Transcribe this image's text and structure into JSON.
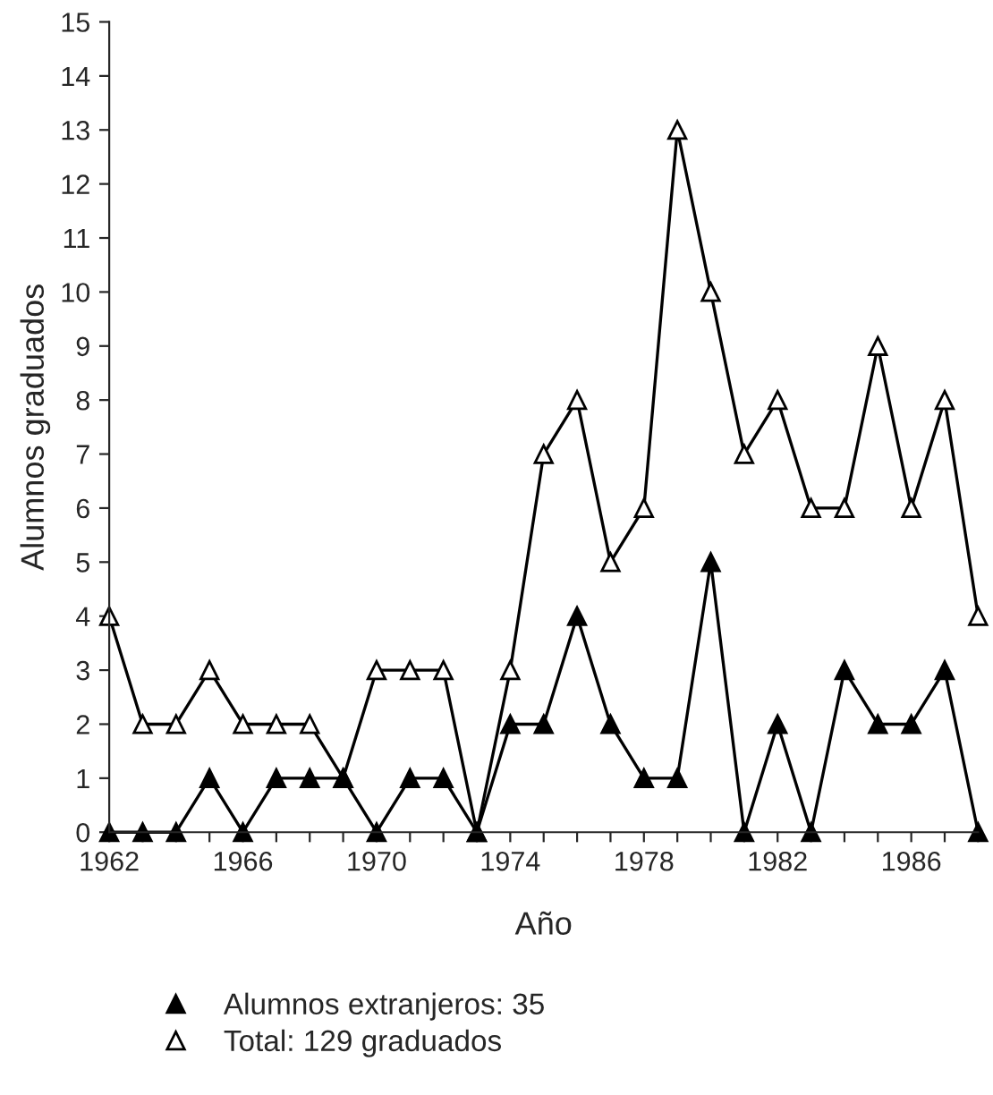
{
  "chart_data": {
    "type": "line",
    "xlabel": "Año",
    "ylabel": "Alumnos graduados",
    "x": [
      1962,
      1963,
      1964,
      1965,
      1966,
      1967,
      1968,
      1969,
      1970,
      1971,
      1972,
      1973,
      1974,
      1975,
      1976,
      1977,
      1978,
      1979,
      1980,
      1981,
      1982,
      1983,
      1984,
      1985,
      1986,
      1987,
      1988
    ],
    "series": [
      {
        "name": "Alumnos extranjeros: 35",
        "color": "#000000",
        "values": [
          0,
          0,
          0,
          1,
          0,
          1,
          1,
          1,
          0,
          1,
          1,
          0,
          2,
          2,
          4,
          2,
          1,
          1,
          5,
          0,
          2,
          0,
          3,
          2,
          2,
          3,
          0
        ]
      },
      {
        "name": "Total: 129 graduados",
        "color": "#000000",
        "values": [
          4,
          2,
          2,
          3,
          2,
          2,
          2,
          1,
          3,
          3,
          3,
          0,
          3,
          7,
          8,
          5,
          6,
          13,
          10,
          7,
          8,
          6,
          6,
          9,
          6,
          8,
          4
        ]
      }
    ],
    "xlim": [
      1962,
      1988
    ],
    "xticks": [
      1962,
      {
        "value": 1963,
        "label": null
      },
      {
        "value": 1964,
        "label": null
      },
      {
        "value": 1965,
        "label": null
      },
      1966,
      {
        "value": 1967,
        "label": null
      },
      {
        "value": 1968,
        "label": null
      },
      {
        "value": 1969,
        "label": null
      },
      1970,
      {
        "value": 1971,
        "label": null
      },
      {
        "value": 1972,
        "label": null
      },
      {
        "value": 1973,
        "label": null
      },
      1974,
      {
        "value": 1975,
        "label": null
      },
      {
        "value": 1976,
        "label": null
      },
      {
        "value": 1977,
        "label": null
      },
      1978,
      {
        "value": 1979,
        "label": null
      },
      {
        "value": 1980,
        "label": null
      },
      {
        "value": 1981,
        "label": null
      },
      1982,
      {
        "value": 1983,
        "label": null
      },
      {
        "value": 1984,
        "label": null
      },
      {
        "value": 1985,
        "label": null
      },
      1986,
      {
        "value": 1987,
        "label": null
      },
      {
        "value": 1988,
        "label": null
      }
    ],
    "ylim": [
      0,
      15
    ],
    "yticks": [
      0,
      1,
      2,
      3,
      4,
      5,
      6,
      7,
      8,
      9,
      10,
      11,
      12,
      13,
      14,
      15
    ],
    "grid": false,
    "legend": "bottom",
    "marker": "triangle",
    "line_style": "solid"
  }
}
